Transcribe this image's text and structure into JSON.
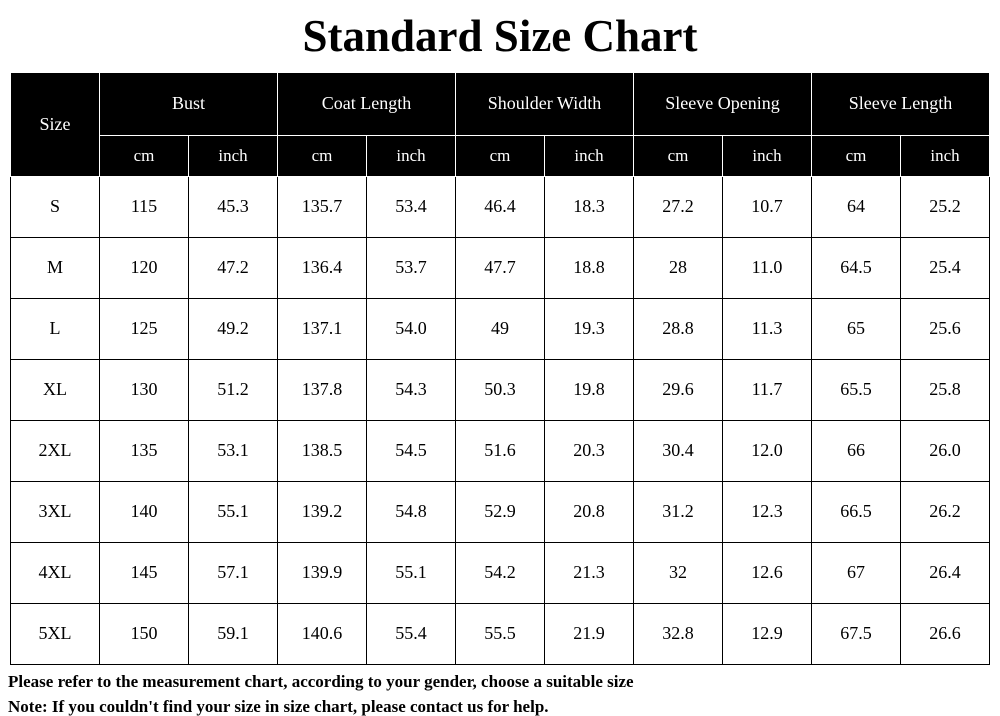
{
  "title": "Standard Size Chart",
  "table": {
    "size_header": "Size",
    "groups": [
      {
        "label": "Bust"
      },
      {
        "label": "Coat Length"
      },
      {
        "label": "Shoulder Width"
      },
      {
        "label": "Sleeve Opening"
      },
      {
        "label": "Sleeve Length"
      }
    ],
    "unit_headers": [
      "cm",
      "inch"
    ],
    "rows": [
      {
        "size": "S",
        "values": [
          "115",
          "45.3",
          "135.7",
          "53.4",
          "46.4",
          "18.3",
          "27.2",
          "10.7",
          "64",
          "25.2"
        ]
      },
      {
        "size": "M",
        "values": [
          "120",
          "47.2",
          "136.4",
          "53.7",
          "47.7",
          "18.8",
          "28",
          "11.0",
          "64.5",
          "25.4"
        ]
      },
      {
        "size": "L",
        "values": [
          "125",
          "49.2",
          "137.1",
          "54.0",
          "49",
          "19.3",
          "28.8",
          "11.3",
          "65",
          "25.6"
        ]
      },
      {
        "size": "XL",
        "values": [
          "130",
          "51.2",
          "137.8",
          "54.3",
          "50.3",
          "19.8",
          "29.6",
          "11.7",
          "65.5",
          "25.8"
        ]
      },
      {
        "size": "2XL",
        "values": [
          "135",
          "53.1",
          "138.5",
          "54.5",
          "51.6",
          "20.3",
          "30.4",
          "12.0",
          "66",
          "26.0"
        ]
      },
      {
        "size": "3XL",
        "values": [
          "140",
          "55.1",
          "139.2",
          "54.8",
          "52.9",
          "20.8",
          "31.2",
          "12.3",
          "66.5",
          "26.2"
        ]
      },
      {
        "size": "4XL",
        "values": [
          "145",
          "57.1",
          "139.9",
          "55.1",
          "54.2",
          "21.3",
          "32",
          "12.6",
          "67",
          "26.4"
        ]
      },
      {
        "size": "5XL",
        "values": [
          "150",
          "59.1",
          "140.6",
          "55.4",
          "55.5",
          "21.9",
          "32.8",
          "12.9",
          "67.5",
          "26.6"
        ]
      }
    ]
  },
  "notes": [
    "Please refer to the measurement chart, according to your gender, choose a suitable size",
    "Note: If you couldn't find your size in size chart, please contact us for help."
  ],
  "colors": {
    "header_bg": "#000000",
    "header_text": "#ffffff",
    "body_bg": "#ffffff",
    "body_text": "#000000",
    "border": "#000000"
  }
}
